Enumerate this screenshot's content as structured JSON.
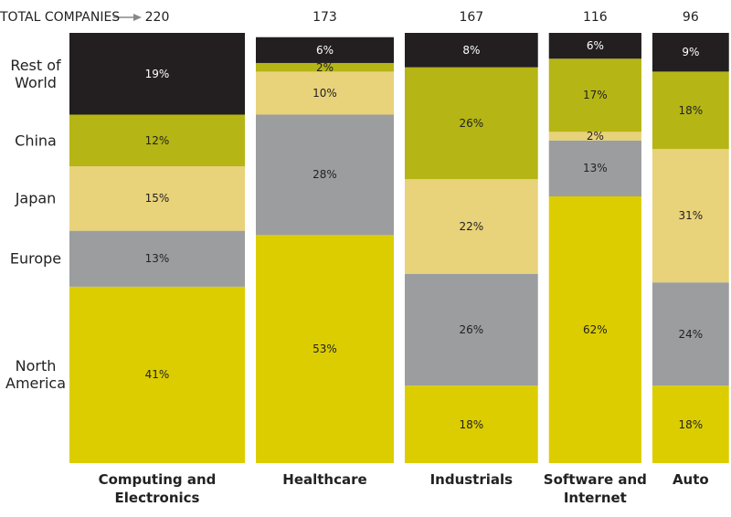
{
  "chart_data": {
    "type": "marimekko",
    "totals_label": "TOTAL COMPANIES",
    "categories": [
      "Computing and Electronics",
      "Healthcare",
      "Industrials",
      "Software and Internet",
      "Auto"
    ],
    "totals": [
      220,
      173,
      167,
      116,
      96
    ],
    "ylim": [
      0,
      100
    ],
    "series": [
      {
        "name": "North America",
        "color": "#dccd00",
        "text_color": "#222222",
        "values": [
          41,
          53,
          18,
          62,
          18
        ],
        "value_labels": [
          "41%",
          "53%",
          "18%",
          "62%",
          "18%"
        ]
      },
      {
        "name": "Europe",
        "color": "#9b9d9f",
        "text_color": "#222222",
        "values": [
          13,
          28,
          26,
          13,
          24
        ],
        "value_labels": [
          "13%",
          "28%",
          "26%",
          "13%",
          "24%"
        ]
      },
      {
        "name": "Japan",
        "color": "#e8d27a",
        "text_color": "#222222",
        "values": [
          15,
          10,
          22,
          2,
          31
        ],
        "value_labels": [
          "15%",
          "10%",
          "22%",
          "2%",
          "31%"
        ]
      },
      {
        "name": "China",
        "color": "#b5b515",
        "text_color": "#222222",
        "values": [
          12,
          2,
          26,
          17,
          18
        ],
        "value_labels": [
          "12%",
          "2%",
          "26%",
          "17%",
          "18%"
        ]
      },
      {
        "name": "Rest of World",
        "color": "#231f20",
        "text_color": "#ffffff",
        "values": [
          19,
          6,
          8,
          6,
          9
        ],
        "value_labels": [
          "19%",
          "6%",
          "8%",
          "6%",
          "9%"
        ]
      }
    ]
  }
}
